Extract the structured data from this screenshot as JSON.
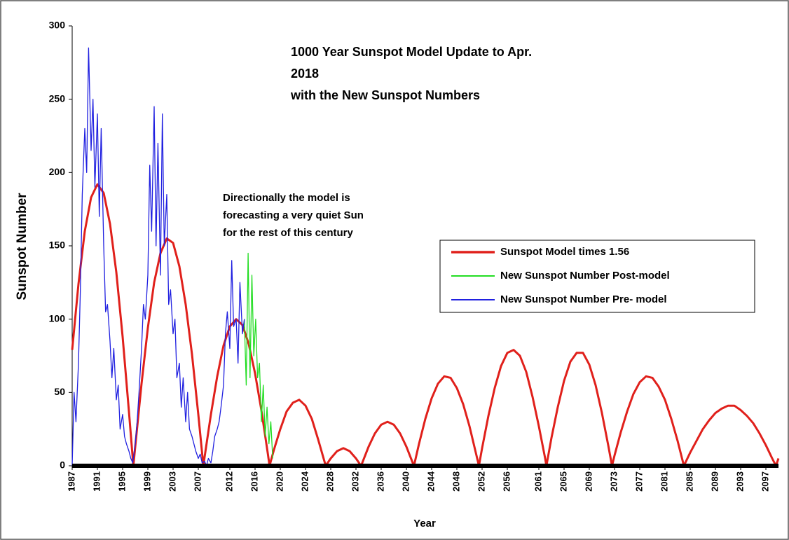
{
  "chart_data": {
    "type": "line",
    "title": [
      "1000 Year Sunspot Model Update to Apr.",
      "2018",
      "with the New Sunspot Numbers"
    ],
    "annotation": [
      "Directionally  the model is",
      "forecasting a very quiet Sun",
      "for the rest of this century"
    ],
    "xlabel": "Year",
    "ylabel": "Sunspot Number",
    "xlim": [
      1987,
      2099
    ],
    "ylim": [
      0,
      300
    ],
    "xticks": [
      1987,
      1991,
      1995,
      1999,
      2003,
      2007,
      2012,
      2016,
      2020,
      2024,
      2028,
      2032,
      2036,
      2040,
      2044,
      2048,
      2052,
      2056,
      2061,
      2065,
      2069,
      2073,
      2077,
      2081,
      2085,
      2089,
      2093,
      2097
    ],
    "yticks": [
      0,
      50,
      100,
      150,
      200,
      250,
      300
    ],
    "legend": "right",
    "series": [
      {
        "name": "Sunspot Model times 1.56",
        "color": "#e0201b",
        "x": [
          1987,
          1988,
          1989,
          1990,
          1991,
          1992,
          1993,
          1994,
          1995,
          1996,
          1996.7,
          1997,
          1998,
          1999,
          2000,
          2001,
          2002,
          2003,
          2004,
          2005,
          2006,
          2007,
          2007.8,
          2008,
          2009,
          2010,
          2011,
          2012,
          2013,
          2014,
          2015,
          2016,
          2017,
          2018,
          2018.3,
          2019,
          2020,
          2021,
          2022,
          2023,
          2024,
          2025,
          2026,
          2027,
          2027.2,
          2028,
          2029,
          2030,
          2031,
          2032,
          2032.8,
          2033,
          2034,
          2035,
          2036,
          2037,
          2038,
          2039,
          2040,
          2041,
          2041.2,
          2042,
          2043,
          2044,
          2045,
          2046,
          2047,
          2048,
          2049,
          2050,
          2051,
          2051.5,
          2052,
          2053,
          2054,
          2055,
          2056,
          2057,
          2058,
          2059,
          2060,
          2061,
          2062,
          2062.2,
          2063,
          2064,
          2065,
          2066,
          2067,
          2068,
          2069,
          2070,
          2071,
          2072,
          2072.6,
          2073,
          2074,
          2075,
          2076,
          2077,
          2078,
          2079,
          2080,
          2081,
          2082,
          2083,
          2084,
          2085,
          2086,
          2087,
          2088,
          2089,
          2090,
          2091,
          2092,
          2093,
          2094,
          2095,
          2096,
          2097,
          2098,
          2098.6,
          2099
        ],
        "values": [
          79,
          124,
          160,
          183,
          192,
          186,
          165,
          132,
          88,
          37,
          0,
          13,
          56,
          94,
          125,
          145,
          155,
          152,
          136,
          110,
          76,
          35,
          0,
          6,
          35,
          61,
          82,
          95,
          100,
          96,
          83,
          63,
          38,
          9,
          0,
          11,
          25,
          37,
          43,
          45,
          41,
          32,
          18,
          3,
          0,
          5,
          10,
          12,
          10,
          5,
          0,
          2,
          13,
          22,
          28,
          30,
          28,
          22,
          13,
          2,
          0,
          15,
          32,
          46,
          56,
          61,
          60,
          53,
          42,
          27,
          9,
          0,
          12,
          34,
          53,
          68,
          77,
          79,
          75,
          64,
          47,
          27,
          5,
          0,
          19,
          40,
          58,
          71,
          77,
          77,
          69,
          55,
          36,
          14,
          0,
          7,
          23,
          37,
          49,
          57,
          61,
          60,
          54,
          45,
          32,
          17,
          0,
          9,
          17,
          25,
          31,
          36,
          39,
          41,
          41,
          38,
          34,
          29,
          22,
          14,
          5,
          0,
          5
        ]
      },
      {
        "name": "New Sunspot Number Post-model",
        "color": "#22dd22",
        "x": [
          2014.3,
          2014.6,
          2014.9,
          2015.2,
          2015.5,
          2015.8,
          2016.1,
          2016.4,
          2016.7,
          2017,
          2017.3,
          2017.6,
          2017.9,
          2018.2,
          2018.5,
          2018.8
        ],
        "values": [
          100,
          55,
          145,
          60,
          130,
          75,
          100,
          60,
          70,
          30,
          55,
          20,
          40,
          15,
          30,
          5
        ]
      },
      {
        "name": "New Sunspot Number Pre- model",
        "color": "#2020e0",
        "x": [
          1987,
          1987.3,
          1987.6,
          1988,
          1988.3,
          1988.6,
          1989,
          1989.3,
          1989.6,
          1990,
          1990.3,
          1990.6,
          1991,
          1991.3,
          1991.6,
          1992,
          1992.3,
          1992.6,
          1993,
          1993.3,
          1993.6,
          1994,
          1994.3,
          1994.6,
          1995,
          1995.3,
          1995.6,
          1996,
          1996.3,
          1996.6,
          1997,
          1997.3,
          1997.6,
          1998,
          1998.3,
          1998.6,
          1999,
          1999.3,
          1999.6,
          2000,
          2000.3,
          2000.6,
          2001,
          2001.3,
          2001.6,
          2002,
          2002.3,
          2002.6,
          2003,
          2003.3,
          2003.6,
          2004,
          2004.3,
          2004.6,
          2005,
          2005.3,
          2005.6,
          2006,
          2006.3,
          2006.6,
          2007,
          2007.3,
          2007.6,
          2008,
          2008.3,
          2008.6,
          2009,
          2009.3,
          2009.6,
          2010,
          2010.3,
          2010.6,
          2011,
          2011.3,
          2011.6,
          2012,
          2012.3,
          2012.6,
          2013,
          2013.3,
          2013.6,
          2014,
          2014.3
        ],
        "values": [
          0,
          50,
          30,
          70,
          120,
          185,
          230,
          200,
          285,
          215,
          250,
          190,
          240,
          170,
          230,
          150,
          105,
          110,
          85,
          60,
          80,
          45,
          55,
          25,
          35,
          20,
          15,
          10,
          5,
          2,
          15,
          30,
          50,
          80,
          110,
          100,
          130,
          205,
          160,
          245,
          150,
          220,
          130,
          240,
          150,
          185,
          110,
          120,
          90,
          100,
          60,
          70,
          40,
          60,
          30,
          50,
          25,
          20,
          15,
          10,
          5,
          8,
          2,
          3,
          0,
          5,
          2,
          10,
          20,
          25,
          30,
          40,
          55,
          90,
          105,
          80,
          140,
          95,
          100,
          70,
          125,
          90,
          100
        ]
      }
    ]
  }
}
